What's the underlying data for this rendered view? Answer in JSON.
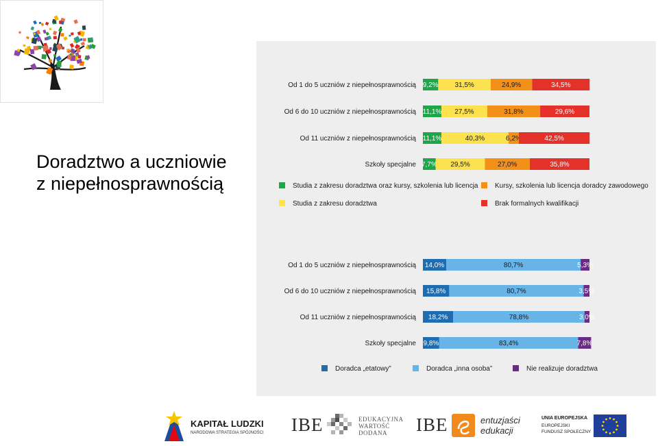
{
  "title": {
    "line1": "Doradztwo a uczniowie",
    "line2": "z niepełnosprawnością"
  },
  "chart_data": [
    {
      "type": "bar",
      "stacked": true,
      "orientation": "horizontal",
      "unit": "%",
      "categories": [
        "Od 1 do 5 uczniów z niepełnosprawnością",
        "Od 6 do 10 uczniów z niepełnosprawnością",
        "Od 11  uczniów z niepełnosprawnością",
        "Szkoły specjalne"
      ],
      "value_labels": [
        [
          "9,2%",
          "31,5%",
          "24,9%",
          "34,5%"
        ],
        [
          "11,1%",
          "27,5%",
          "31,8%",
          "29,6%"
        ],
        [
          "11,1%",
          "40,3%",
          "6,2%",
          "42,5%"
        ],
        [
          "7,7%",
          "29,5%",
          "27,0%",
          "35,8%"
        ]
      ],
      "series": [
        {
          "name": "Studia z zakresu doradztwa oraz kursy, szkolenia lub licencja",
          "color": "#1fa64a",
          "label_color": "#ffffff",
          "values": [
            9.2,
            11.1,
            11.1,
            7.7
          ]
        },
        {
          "name": "Studia z zakresu doradztwa",
          "color": "#fde24f",
          "label_color": "#1a1a1a",
          "values": [
            31.5,
            27.5,
            40.3,
            29.5
          ]
        },
        {
          "name": "Kursy, szkolenia lub licencja doradcy zawodowego",
          "color": "#f39019",
          "label_color": "#1a1a1a",
          "values": [
            24.9,
            31.8,
            6.2,
            27.0
          ]
        },
        {
          "name": "Brak formalnych kwalifikacji",
          "color": "#e4322b",
          "label_color": "#ffffff",
          "values": [
            34.5,
            29.6,
            42.5,
            35.8
          ]
        }
      ],
      "legend": [
        {
          "name": "Studia z zakresu doradztwa oraz kursy, szkolenia lub licencja",
          "color": "#1fa64a"
        },
        {
          "name": "Kursy, szkolenia lub licencja doradcy zawodowego",
          "color": "#f39019"
        },
        {
          "name": "Studia z zakresu doradztwa",
          "color": "#fde24f"
        },
        {
          "name": "Brak formalnych kwalifikacji",
          "color": "#e4322b"
        }
      ],
      "legend_placement": "bottom",
      "xlim": [
        0,
        100
      ]
    },
    {
      "type": "bar",
      "stacked": true,
      "orientation": "horizontal",
      "unit": "%",
      "categories": [
        "Od 1 do 5 uczniów z niepełnosprawnością",
        "Od 6 do 10 uczniów z niepełnosprawnością",
        "Od 11  uczniów z niepełnosprawnością",
        "Szkoły specjalne"
      ],
      "value_labels": [
        [
          "14,0%",
          "80,7%",
          "5,3%"
        ],
        [
          "15,8%",
          "80,7%",
          "3,5%"
        ],
        [
          "18,2%",
          "78,8%",
          "3,0%"
        ],
        [
          "9,8%",
          "83,4%",
          "7,8%"
        ]
      ],
      "series": [
        {
          "name": "Doradca „etatowy”",
          "color": "#1f6cb0",
          "label_color": "#ffffff",
          "values": [
            14.0,
            15.8,
            18.2,
            9.8
          ]
        },
        {
          "name": "Doradca „inna osoba”",
          "color": "#69b4e6",
          "label_color": "#1a1a1a",
          "values": [
            80.7,
            80.7,
            78.8,
            83.4
          ]
        },
        {
          "name": "Nie realizuje doradztwa",
          "color": "#6b2a83",
          "label_color": "#ffffff",
          "values": [
            5.3,
            3.5,
            3.0,
            7.8
          ]
        }
      ],
      "legend": [
        {
          "name": "Doradca „etatowy”",
          "color": "#1f6cb0"
        },
        {
          "name": "Doradca „inna osoba”",
          "color": "#69b4e6"
        },
        {
          "name": "Nie realizuje doradztwa",
          "color": "#6b2a83"
        }
      ],
      "legend_placement": "bottom",
      "xlim": [
        0,
        100
      ]
    }
  ],
  "footer": {
    "kapital": {
      "line1": "KAPITAŁ LUDZKI",
      "line2": "NARODOWA STRATEGIA SPÓJNOŚCI"
    },
    "ibe1": {
      "mark": "IBE",
      "line1": "EDUKACYJNA",
      "line2": "WARTOŚĆ",
      "line3": "DODANA"
    },
    "ibe2": {
      "mark": "IBE",
      "line1": "entuzjaści",
      "line2": "edukacji"
    },
    "ue": {
      "line1": "UNIA EUROPEJSKA",
      "line2": "EUROPEJSKI",
      "line3": "FUNDUSZ SPOŁECZNY"
    }
  }
}
